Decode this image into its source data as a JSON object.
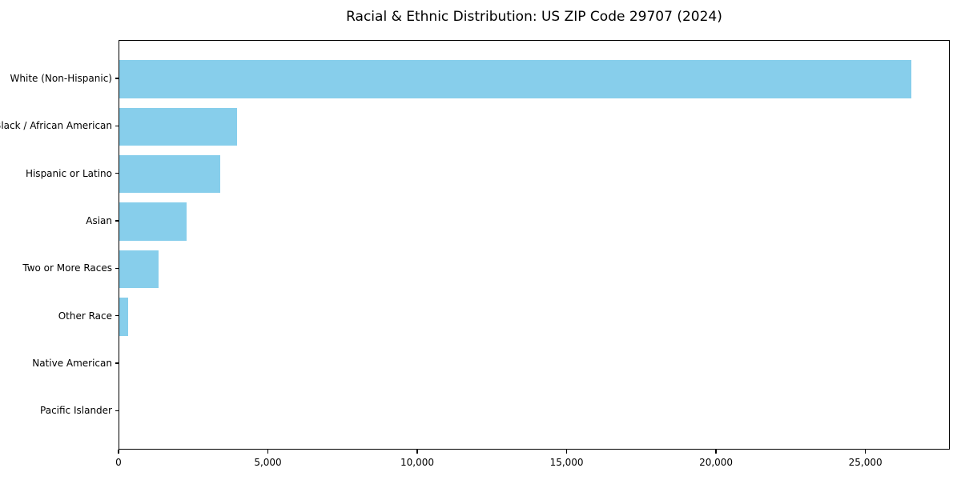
{
  "title": "Racial & Ethnic Distribution: US ZIP Code 29707 (2024)",
  "colors": {
    "bar": "#87CEEB",
    "spine": "#000000",
    "background": "#FFFFFF",
    "text": "#000000"
  },
  "chart_data": {
    "type": "bar",
    "orientation": "horizontal",
    "title": "Racial & Ethnic Distribution: US ZIP Code 29707 (2024)",
    "xlabel": "",
    "ylabel": "",
    "categories": [
      "White (Non-Hispanic)",
      "Black / African American",
      "Hispanic or Latino",
      "Asian",
      "Two or More Races",
      "Other Race",
      "Native American",
      "Pacific Islander"
    ],
    "values": [
      26500,
      3940,
      3390,
      2250,
      1320,
      295,
      0,
      0
    ],
    "xlim": [
      0,
      27825
    ],
    "xticks": [
      0,
      5000,
      10000,
      15000,
      20000,
      25000
    ],
    "xtick_labels": [
      "0",
      "5,000",
      "10,000",
      "15,000",
      "20,000",
      "25,000"
    ],
    "grid": false,
    "legend": null,
    "bar_color": "#87CEEB"
  }
}
